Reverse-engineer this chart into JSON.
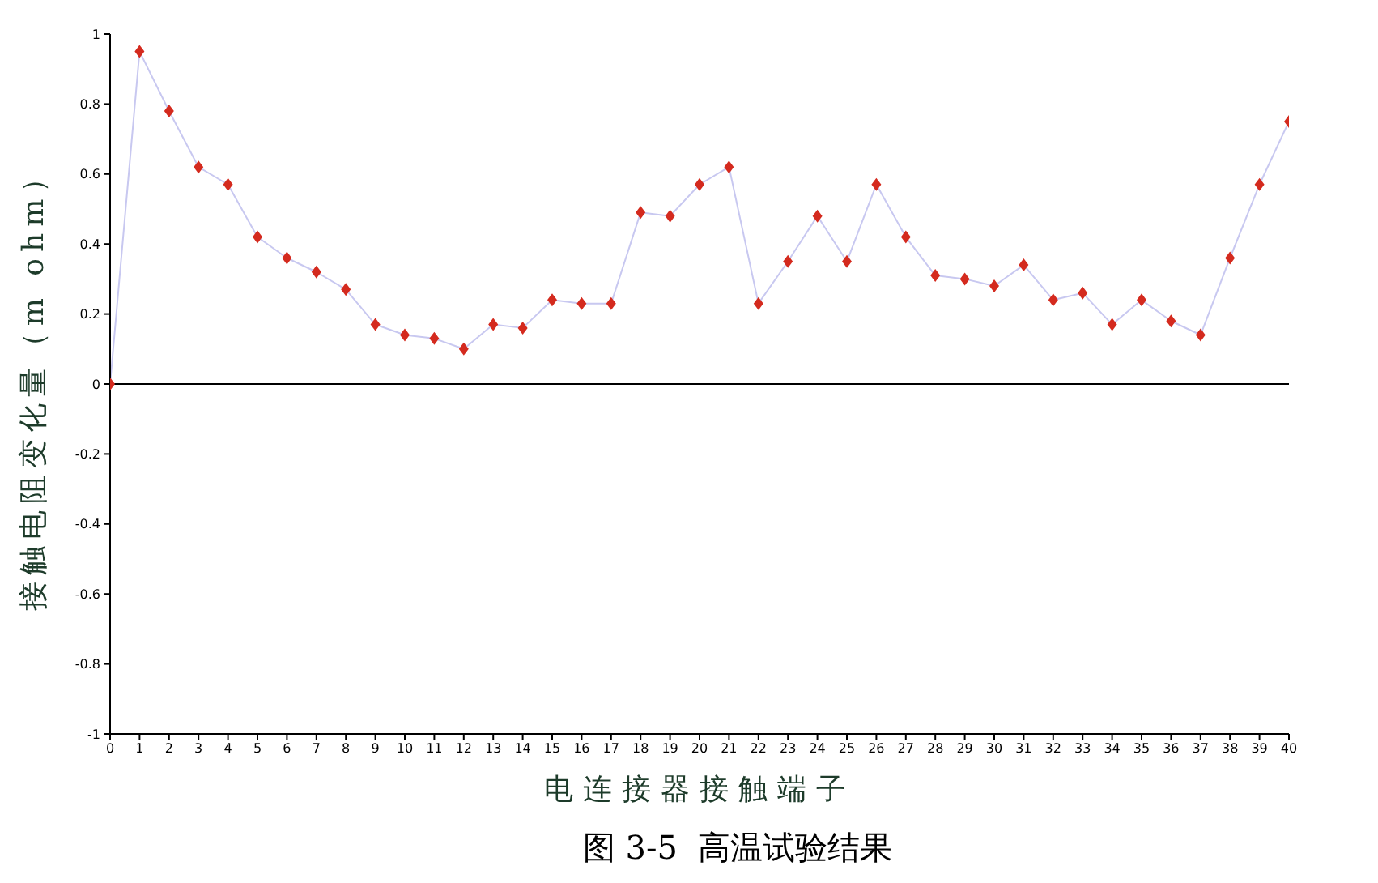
{
  "chart_data": {
    "type": "line",
    "xlabel": "电连接器接触端子",
    "ylabel": "接触电阻变化量（m ohm）",
    "annotations": [
      "图 3-5  高温试验结果"
    ],
    "x": [
      0,
      1,
      2,
      3,
      4,
      5,
      6,
      7,
      8,
      9,
      10,
      11,
      12,
      13,
      14,
      15,
      16,
      17,
      18,
      19,
      20,
      21,
      22,
      23,
      24,
      25,
      26,
      27,
      28,
      29,
      30,
      31,
      32,
      33,
      34,
      35,
      36,
      37,
      38,
      39,
      40
    ],
    "series": [
      {
        "color": "#c8c8f0",
        "colors": [
          "#d42a1e",
          "#d42a1e",
          "#d42a1e",
          "#d42a1e",
          "#d42a1e",
          "#d42a1e",
          "#d42a1e",
          "#d42a1e",
          "#d42a1e",
          "#d42a1e",
          "#d42a1e",
          "#d42a1e",
          "#d42a1e",
          "#d42a1e",
          "#d42a1e",
          "#d42a1e",
          "#d42a1e",
          "#d42a1e",
          "#d42a1e",
          "#d42a1e",
          "#d42a1e",
          "#d42a1e",
          "#d42a1e",
          "#d42a1e",
          "#d42a1e",
          "#d42a1e",
          "#d42a1e",
          "#d42a1e",
          "#d42a1e",
          "#d42a1e",
          "#d42a1e",
          "#d42a1e",
          "#d42a1e",
          "#d42a1e",
          "#d42a1e",
          "#d42a1e",
          "#d42a1e",
          "#d42a1e",
          "#d42a1e",
          "#d42a1e",
          "#d42a1e"
        ],
        "values": [
          0,
          0.95,
          0.78,
          0.62,
          0.57,
          0.42,
          0.36,
          0.32,
          0.27,
          0.17,
          0.14,
          0.13,
          0.1,
          0.17,
          0.16,
          0.24,
          0.23,
          0.23,
          0.49,
          0.48,
          0.57,
          0.62,
          0.23,
          0.35,
          0.48,
          0.35,
          0.57,
          0.42,
          0.31,
          0.3,
          0.28,
          0.34,
          0.24,
          0.26,
          0.17,
          0.24,
          0.18,
          0.14,
          0.36,
          0.57,
          0.75
        ]
      }
    ],
    "marker": "diamond",
    "xlim": [
      0,
      40
    ],
    "xticks": [
      0,
      1,
      2,
      3,
      4,
      5,
      6,
      7,
      8,
      9,
      10,
      11,
      12,
      13,
      14,
      15,
      16,
      17,
      18,
      19,
      20,
      21,
      22,
      23,
      24,
      25,
      26,
      27,
      28,
      29,
      30,
      31,
      32,
      33,
      34,
      35,
      36,
      37,
      38,
      39,
      40
    ],
    "ylim": [
      -1,
      1
    ],
    "yticks": [
      -1,
      -0.8,
      -0.6,
      -0.4,
      -0.2,
      0,
      0.2,
      0.4,
      0.6,
      0.8,
      1
    ],
    "ref_lines": [
      {
        "axis": "y",
        "value": 0,
        "color": "#000000"
      }
    ],
    "grid": false,
    "legend": false
  }
}
